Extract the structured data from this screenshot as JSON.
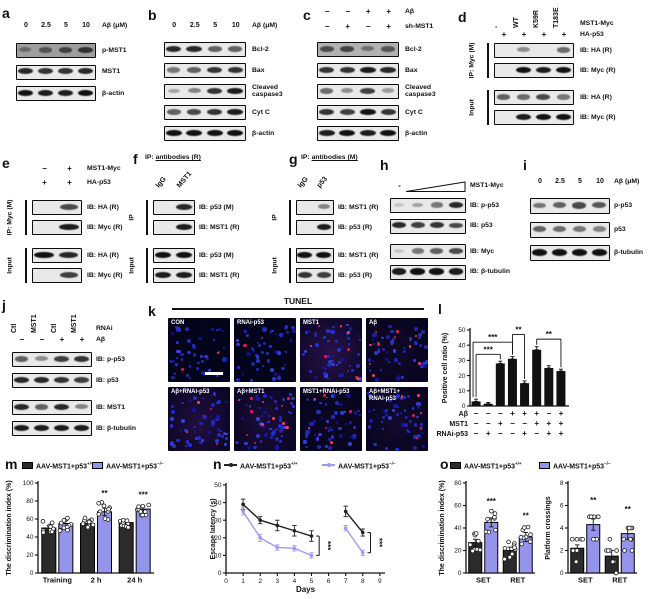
{
  "panels": {
    "a": {
      "letter": "a",
      "lane_labels": [
        "0",
        "2.5",
        "5",
        "10"
      ],
      "lane_unit": "Aβ (μM)",
      "groups": [
        {
          "rows": [
            {
              "label": "p-MST1",
              "bands": [
                0.35,
                0.5,
                0.62,
                0.72
              ],
              "bg": "#9e9e9e"
            },
            {
              "label": "MST1",
              "bands": [
                0.85,
                0.8,
                0.8,
                0.85
              ]
            },
            {
              "label": "β-actin",
              "bands": [
                0.95,
                0.9,
                0.9,
                0.95
              ]
            }
          ]
        }
      ]
    },
    "b": {
      "letter": "b",
      "lane_labels": [
        "0",
        "2.5",
        "5",
        "10"
      ],
      "lane_unit": "Aβ (μM)",
      "groups": [
        {
          "rows": [
            {
              "label": "Bcl-2",
              "bands": [
                0.85,
                0.85,
                0.6,
                0.6
              ]
            },
            {
              "label": "Bax",
              "bands": [
                0.5,
                0.6,
                0.8,
                0.8
              ]
            },
            {
              "label": "Cleaved caspase3",
              "bands": [
                0.3,
                0.45,
                0.8,
                0.9
              ],
              "wrap": true
            },
            {
              "label": "Cyt C",
              "bands": [
                0.6,
                0.7,
                0.8,
                0.9
              ]
            },
            {
              "label": "β-actin",
              "bands": [
                0.95,
                0.95,
                0.95,
                0.95
              ]
            }
          ]
        }
      ]
    },
    "c": {
      "letter": "c",
      "cond_rows": [
        {
          "label": "Aβ",
          "symbols": [
            "−",
            "−",
            "+",
            "+"
          ]
        },
        {
          "label": "sh-MST1",
          "symbols": [
            "−",
            "+",
            "−",
            "+"
          ]
        }
      ],
      "groups": [
        {
          "rows": [
            {
              "label": "Bcl-2",
              "bands": [
                0.6,
                0.65,
                0.4,
                0.55
              ],
              "bg": "#b2b2b2"
            },
            {
              "label": "Bax",
              "bands": [
                0.8,
                0.8,
                0.9,
                0.85
              ]
            },
            {
              "label": "Cleaved caspase3",
              "bands": [
                0.55,
                0.4,
                0.75,
                0.35
              ],
              "wrap": true
            },
            {
              "label": "Cyt C",
              "bands": [
                0.8,
                0.75,
                0.95,
                0.8
              ]
            },
            {
              "label": "β-actin",
              "bands": [
                0.9,
                0.95,
                0.9,
                0.95
              ]
            }
          ]
        }
      ]
    },
    "d": {
      "letter": "d",
      "lane_labels": [
        "-",
        "WT",
        "K59R",
        "T183E"
      ],
      "lane_right_label": "MST1-Myc",
      "cond_rows": [
        {
          "label": "HA-p53",
          "symbols": [
            "+",
            "+",
            "+",
            "+"
          ]
        }
      ],
      "groups": [
        {
          "label": "IP: Myc (M)",
          "rows": [
            {
              "label": "IB: HA (R)",
              "bands": [
                0,
                0.4,
                0,
                0.55
              ]
            },
            {
              "label": "IB: Myc (R)",
              "bands": [
                0,
                0.95,
                0.9,
                0.95
              ]
            }
          ]
        },
        {
          "label": "Input",
          "rows": [
            {
              "label": "IB: HA (R)",
              "bands": [
                0.6,
                0.55,
                0.7,
                0.5
              ]
            },
            {
              "label": "IB: Myc (R)",
              "bands": [
                0,
                0.9,
                0.95,
                0.95
              ]
            }
          ]
        }
      ]
    },
    "e": {
      "letter": "e",
      "cond_rows": [
        {
          "label": "MST1-Myc",
          "symbols": [
            "−",
            "+"
          ]
        },
        {
          "label": "HA-p53",
          "symbols": [
            "+",
            "+"
          ]
        }
      ],
      "groups": [
        {
          "label": "IP: Myc (M)",
          "rows": [
            {
              "label": "IB: HA (R)",
              "bands": [
                0,
                0.7
              ]
            },
            {
              "label": "IB: Myc (R)",
              "bands": [
                0,
                0.9
              ]
            }
          ]
        },
        {
          "label": "Input",
          "rows": [
            {
              "label": "IB: HA (R)",
              "bands": [
                0.95,
                0.85
              ]
            },
            {
              "label": "IB: Myc (R)",
              "bands": [
                0,
                0.75
              ]
            }
          ]
        }
      ]
    },
    "f": {
      "letter": "f",
      "header": {
        "prefix": "IP:",
        "underlined": "antibodies (R)"
      },
      "lane_labels": [
        "IgG",
        "MST1"
      ],
      "groups": [
        {
          "label": "IP",
          "rows": [
            {
              "label": "IB: p53 (M)",
              "bands": [
                0,
                0.85
              ]
            },
            {
              "label": "IB: MST1 (R)",
              "bands": [
                0,
                0.9
              ]
            }
          ]
        },
        {
          "label": "Input",
          "rows": [
            {
              "label": "IB: p53 (M)",
              "bands": [
                0.95,
                0.95
              ]
            },
            {
              "label": "IB: MST1 (R)",
              "bands": [
                0.9,
                0.9
              ]
            }
          ]
        }
      ]
    },
    "g": {
      "letter": "g",
      "header": {
        "prefix": "IP:",
        "underlined": "antibodies (M)"
      },
      "lane_labels": [
        "IgG",
        "p53"
      ],
      "groups": [
        {
          "label": "IP",
          "rows": [
            {
              "label": "IB: MST1 (R)",
              "bands": [
                0,
                0.45
              ]
            },
            {
              "label": "IB: p53 (R)",
              "bands": [
                0,
                0.9
              ]
            }
          ]
        },
        {
          "label": "Input",
          "rows": [
            {
              "label": "IB: MST1 (R)",
              "bands": [
                0.95,
                0.95
              ]
            },
            {
              "label": "IB: p53 (R)",
              "bands": [
                0.8,
                0.75
              ]
            }
          ]
        }
      ]
    },
    "h": {
      "letter": "h",
      "wedge": {
        "minus": "-",
        "label": "MST1-Myc"
      },
      "groups": [
        {
          "rows": [
            {
              "label": "IB: p-p53",
              "bands": [
                0.15,
                0.3,
                0.5,
                0.85
              ]
            },
            {
              "label": "IB: p53",
              "bands": [
                0.85,
                0.75,
                0.8,
                0.7
              ],
              "gapAfter": 5
            },
            {
              "label": "IB: Myc",
              "bands": [
                0.15,
                0.5,
                0.6,
                0.7
              ]
            },
            {
              "label": "IB: β-tubulin",
              "bands": [
                0.9,
                0.95,
                0.95,
                0.9
              ]
            }
          ]
        }
      ]
    },
    "i": {
      "letter": "i",
      "lane_labels": [
        "0",
        "2.5",
        "5",
        "10"
      ],
      "lane_unit": "Aβ (μM)",
      "groups": [
        {
          "rows": [
            {
              "label": "p-p53",
              "bands": [
                0.5,
                0.6,
                0.7,
                0.65
              ]
            },
            {
              "label": "p53",
              "bands": [
                0.6,
                0.55,
                0.5,
                0.45
              ]
            },
            {
              "label": "β-tubulin",
              "bands": [
                0.95,
                0.95,
                0.95,
                0.95
              ]
            }
          ]
        }
      ]
    },
    "j": {
      "letter": "j",
      "lane_labels": [
        "Ctl",
        "MST1",
        "Ctl",
        "MST1"
      ],
      "lane_right_label": "RNAi",
      "cond_rows": [
        {
          "label": "Aβ",
          "symbols": [
            "−",
            "−",
            "+",
            "+"
          ]
        }
      ],
      "groups": [
        {
          "rows": [
            {
              "label": "IB: p-p53",
              "bands": [
                0.6,
                0.4,
                0.75,
                0.8
              ]
            },
            {
              "label": "IB: p53",
              "bands": [
                0.85,
                0.85,
                0.8,
                0.75
              ],
              "gapAfter": 6
            },
            {
              "label": "IB: MST1",
              "bands": [
                0.85,
                0.6,
                0.85,
                0.45
              ]
            },
            {
              "label": "IB: β-tubulin",
              "bands": [
                0.9,
                0.9,
                0.9,
                0.9
              ]
            }
          ]
        }
      ]
    },
    "k": {
      "letter": "k",
      "title": "TUNEL",
      "images": [
        {
          "label": "CON",
          "red": 2,
          "haze": 0.0,
          "scalebar": true
        },
        {
          "label": "RNAi-p53",
          "red": 1,
          "haze": 0.0
        },
        {
          "label": "MST1",
          "red": 8,
          "haze": 0.25
        },
        {
          "label": "Aβ",
          "red": 10,
          "haze": 0.08
        },
        {
          "label": "Aβ+RNAi-p53",
          "red": 5,
          "haze": 0.2
        },
        {
          "label": "Aβ+MST1",
          "red": 12,
          "haze": 0.16
        },
        {
          "label": "MST1+RNAi-p53",
          "red": 7,
          "haze": 0.06
        },
        {
          "label": "Aβ+MST1+\nRNAi-p53",
          "red": 6,
          "haze": 0.1
        }
      ]
    },
    "l": {
      "letter": "l"
    },
    "m": {
      "letter": "m"
    },
    "n": {
      "letter": "n"
    },
    "o": {
      "letter": "o"
    }
  },
  "chart_data": [
    {
      "id": "l",
      "type": "bar",
      "ylabel": "Positive cell ratio (%)",
      "ylim": [
        0,
        50
      ],
      "yticks": [
        0,
        10,
        20,
        30,
        40,
        50
      ],
      "bar_color": "#111111",
      "values": [
        3,
        1.5,
        28,
        31,
        15,
        37,
        25,
        23
      ],
      "errors": [
        1.5,
        0.8,
        1.5,
        1.5,
        1.5,
        2,
        1.5,
        1.2
      ],
      "cond_rows": [
        {
          "label": "Aβ",
          "symbols": [
            "−",
            "−",
            "−",
            "+",
            "+",
            "+",
            "−",
            "+"
          ]
        },
        {
          "label": "MST1",
          "symbols": [
            "−",
            "−",
            "+",
            "−",
            "−",
            "+",
            "+",
            "+"
          ]
        },
        {
          "label": "RNAi-p53",
          "symbols": [
            "−",
            "+",
            "−",
            "−",
            "+",
            "−",
            "+",
            "+"
          ]
        }
      ],
      "sig": [
        {
          "a": 0,
          "b": 2,
          "y": 34,
          "stars": "***"
        },
        {
          "a": 0,
          "b": 3,
          "y": 42,
          "stars": "***"
        },
        {
          "a": 3,
          "b": 4,
          "y": 47,
          "stars": "**"
        },
        {
          "a": 5,
          "b": 7,
          "y": 44,
          "stars": "**"
        }
      ]
    },
    {
      "id": "m",
      "type": "grouped-bar",
      "ylabel": "The discrimination index (%)",
      "ylim": [
        0,
        100
      ],
      "yticks": [
        0,
        20,
        40,
        60,
        80,
        100
      ],
      "categories": [
        "Training",
        "2 h",
        "24 h"
      ],
      "series": [
        {
          "name": "AAV-MST1+p53",
          "sup": "+/+",
          "color": "#2b2b2b",
          "values": [
            50,
            55,
            56
          ],
          "errors": [
            3,
            2.5,
            2
          ]
        },
        {
          "name": "AAV-MST1+p53",
          "sup": "−/−",
          "color": "#9394ea",
          "values": [
            55,
            68,
            71
          ],
          "errors": [
            3,
            4,
            2.5
          ]
        }
      ],
      "sig": [
        {
          "cat": 1,
          "series": 1,
          "stars": "**"
        },
        {
          "cat": 2,
          "series": 1,
          "stars": "***"
        }
      ],
      "dots": 10
    },
    {
      "id": "n",
      "type": "line",
      "ylabel": "Escape latency (s)",
      "xlabel": "Days",
      "ylim": [
        0,
        50
      ],
      "yticks": [
        0,
        10,
        20,
        30,
        40,
        50
      ],
      "xticks": [
        0,
        1,
        2,
        3,
        4,
        5,
        6,
        7,
        8,
        9
      ],
      "xlim": [
        0,
        9.3
      ],
      "series": [
        {
          "name": "AAV-MST1+p53",
          "sup": "+/+",
          "color": "#222222",
          "segments": [
            {
              "x": [
                1,
                2,
                3,
                4,
                5
              ],
              "y": [
                39,
                30,
                27,
                24,
                21
              ],
              "err": [
                3,
                2,
                3,
                3,
                3
              ]
            },
            {
              "x": [
                7,
                8
              ],
              "y": [
                35,
                23
              ],
              "err": [
                3,
                2
              ]
            }
          ]
        },
        {
          "name": "AAV-MST1+p53",
          "sup": "−/−",
          "color": "#9b9cf0",
          "segments": [
            {
              "x": [
                1,
                2,
                3,
                4,
                5
              ],
              "y": [
                35,
                20,
                14.5,
                14,
                10
              ],
              "err": [
                2,
                2,
                1.5,
                1.5,
                1.5
              ]
            },
            {
              "x": [
                7,
                8
              ],
              "y": [
                25.5,
                11.5
              ],
              "err": [
                1.5,
                1.5
              ]
            }
          ]
        }
      ],
      "sig": [
        {
          "x": 5.45,
          "y1": 10,
          "y2": 21,
          "stars": "***"
        },
        {
          "x": 8.45,
          "y1": 11.5,
          "y2": 23,
          "stars": "***"
        }
      ]
    },
    {
      "id": "o_left",
      "type": "grouped-bar",
      "ylabel": "The discrimination index (%)",
      "ylim": [
        0,
        80
      ],
      "yticks": [
        0,
        20,
        40,
        60,
        80
      ],
      "categories": [
        "SET",
        "RET"
      ],
      "series": [
        {
          "name": "AAV-MST1+p53",
          "sup": "+/+",
          "color": "#2b2b2b",
          "values": [
            27,
            20
          ],
          "errors": [
            3,
            3
          ]
        },
        {
          "name": "AAV-MST1+p53",
          "sup": "−/−",
          "color": "#9394ea",
          "values": [
            45,
            32
          ],
          "errors": [
            4,
            4
          ]
        }
      ],
      "sig": [
        {
          "cat": 0,
          "series": 1,
          "stars": "***"
        },
        {
          "cat": 1,
          "series": 1,
          "stars": "**"
        }
      ],
      "dots": 9
    },
    {
      "id": "o_right",
      "type": "grouped-bar",
      "ylabel": "Platform crossings",
      "ylim": [
        0,
        8
      ],
      "yticks": [
        0,
        2,
        4,
        6,
        8
      ],
      "categories": [
        "SET",
        "RET"
      ],
      "series": [
        {
          "name": "AAV-MST1+p53",
          "sup": "+/+",
          "color": "#2b2b2b",
          "values": [
            2.2,
            1.5
          ],
          "errors": [
            0.3,
            0.5
          ]
        },
        {
          "name": "AAV-MST1+p53",
          "sup": "−/−",
          "color": "#9394ea",
          "values": [
            4.3,
            3.5
          ],
          "errors": [
            0.5,
            0.5
          ]
        }
      ],
      "sig": [
        {
          "cat": 0,
          "series": 1,
          "stars": "**"
        },
        {
          "cat": 1,
          "series": 1,
          "stars": "**"
        }
      ],
      "dots": 9,
      "int_dots": true
    }
  ]
}
